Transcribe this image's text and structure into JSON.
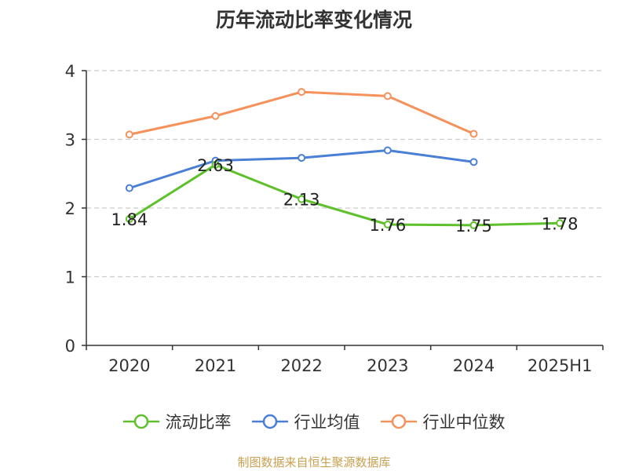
{
  "chart_data": {
    "type": "line",
    "title": "历年流动比率变化情况",
    "categories": [
      "2020",
      "2021",
      "2022",
      "2023",
      "2024",
      "2025H1"
    ],
    "ylim": [
      0,
      4
    ],
    "yticks": [
      "0",
      "1",
      "2",
      "3",
      "4"
    ],
    "grid": true,
    "legend_position": "bottom",
    "series": [
      {
        "name": "流动比率",
        "color": "#5ec12b",
        "values": [
          1.84,
          2.63,
          2.13,
          1.76,
          1.75,
          1.78
        ],
        "labels": [
          "1.84",
          "2.63",
          "2.13",
          "1.76",
          "1.75",
          "1.78"
        ]
      },
      {
        "name": "行业均值",
        "color": "#4a7fd6",
        "values": [
          2.29,
          2.69,
          2.73,
          2.84,
          2.67,
          null
        ]
      },
      {
        "name": "行业中位数",
        "color": "#f5915a",
        "values": [
          3.07,
          3.34,
          3.69,
          3.63,
          3.08,
          null
        ]
      }
    ]
  },
  "source": "制图数据来自恒生聚源数据库"
}
